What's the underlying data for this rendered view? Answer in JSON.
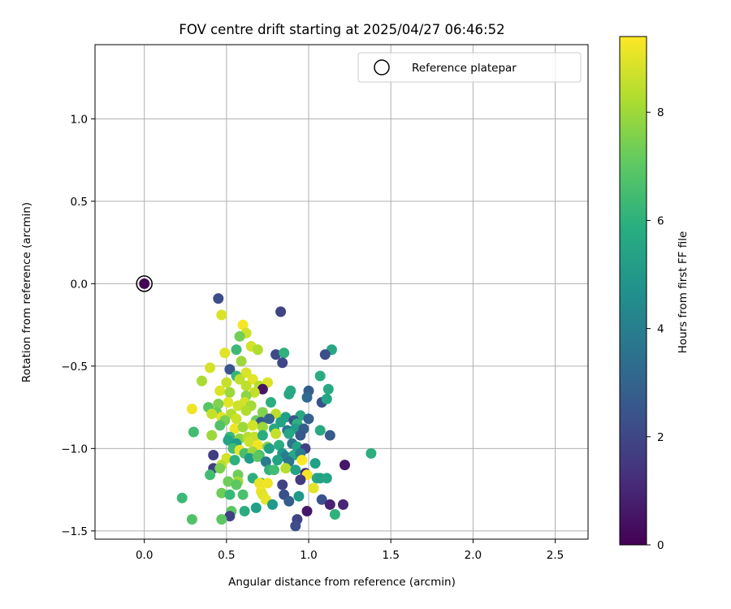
{
  "chart_data": {
    "type": "scatter",
    "title": "FOV centre drift starting at 2025/04/27 06:46:52",
    "xlabel": "Angular distance from reference (arcmin)",
    "ylabel": "Rotation from reference (arcmin)",
    "xlim": [
      -0.3,
      2.7
    ],
    "ylim": [
      -1.55,
      1.45
    ],
    "xticks": [
      0.0,
      0.5,
      1.0,
      1.5,
      2.0,
      2.5
    ],
    "xtick_labels": [
      "0.0",
      "0.5",
      "1.0",
      "1.5",
      "2.0",
      "2.5"
    ],
    "yticks": [
      1.0,
      0.5,
      0.0,
      -0.5,
      -1.0,
      -1.5
    ],
    "ytick_labels": [
      "1.0",
      "0.5",
      "0.0",
      "−0.5",
      "−1.0",
      "−1.5"
    ],
    "grid": true,
    "legend": {
      "placement": "top-right",
      "entries": [
        "Reference platepar"
      ]
    },
    "colorbar": {
      "label": "Hours from first FF file",
      "range": [
        0,
        9.4
      ],
      "ticks": [
        0,
        2,
        4,
        6,
        8
      ],
      "tick_labels": [
        "0",
        "2",
        "4",
        "6",
        "8"
      ],
      "colormap": "viridis"
    },
    "reference": {
      "x": 0.0,
      "y": 0.0,
      "hours": 0.0
    },
    "series": [
      {
        "points": [
          [
            0.45,
            -0.09,
            2.2
          ],
          [
            0.83,
            -0.17,
            1.9
          ],
          [
            0.47,
            -0.19,
            8.9
          ],
          [
            0.6,
            -0.25,
            9.3
          ],
          [
            0.62,
            -0.3,
            8.7
          ],
          [
            0.58,
            -0.32,
            7.4
          ],
          [
            0.56,
            -0.4,
            6.4
          ],
          [
            0.65,
            -0.38,
            8.8
          ],
          [
            0.69,
            -0.4,
            8.3
          ],
          [
            0.49,
            -0.42,
            9.0
          ],
          [
            0.8,
            -0.43,
            2.1
          ],
          [
            0.85,
            -0.42,
            6.0
          ],
          [
            1.14,
            -0.4,
            5.6
          ],
          [
            1.1,
            -0.43,
            2.3
          ],
          [
            0.59,
            -0.47,
            8.0
          ],
          [
            0.84,
            -0.48,
            2.0
          ],
          [
            0.4,
            -0.51,
            8.8
          ],
          [
            0.52,
            -0.52,
            2.5
          ],
          [
            0.56,
            -0.56,
            6.2
          ],
          [
            0.62,
            -0.54,
            8.9
          ],
          [
            0.58,
            -0.58,
            8.5
          ],
          [
            0.35,
            -0.59,
            8.2
          ],
          [
            0.5,
            -0.6,
            8.6
          ],
          [
            0.66,
            -0.58,
            9.0
          ],
          [
            0.7,
            -0.62,
            8.4
          ],
          [
            0.75,
            -0.6,
            8.9
          ],
          [
            0.62,
            -0.62,
            8.5
          ],
          [
            1.07,
            -0.56,
            5.8
          ],
          [
            1.0,
            -0.65,
            2.8
          ],
          [
            0.89,
            -0.65,
            5.7
          ],
          [
            0.88,
            -0.67,
            5.6
          ],
          [
            0.99,
            -0.69,
            3.2
          ],
          [
            0.72,
            -0.64,
            0.5
          ],
          [
            0.46,
            -0.65,
            8.9
          ],
          [
            0.52,
            -0.66,
            8.0
          ],
          [
            0.67,
            -0.66,
            8.6
          ],
          [
            0.62,
            -0.68,
            7.8
          ],
          [
            1.12,
            -0.64,
            5.7
          ],
          [
            1.08,
            -0.72,
            2.4
          ],
          [
            1.11,
            -0.7,
            5.5
          ],
          [
            0.51,
            -0.72,
            9.0
          ],
          [
            0.61,
            -0.72,
            8.8
          ],
          [
            0.77,
            -0.72,
            5.9
          ],
          [
            0.39,
            -0.75,
            6.9
          ],
          [
            0.45,
            -0.73,
            7.6
          ],
          [
            0.57,
            -0.74,
            8.7
          ],
          [
            0.65,
            -0.74,
            8.1
          ],
          [
            0.29,
            -0.76,
            9.2
          ],
          [
            0.44,
            -0.78,
            7.2
          ],
          [
            0.53,
            -0.79,
            8.4
          ],
          [
            0.62,
            -0.77,
            8.3
          ],
          [
            0.72,
            -0.78,
            7.6
          ],
          [
            0.8,
            -0.79,
            8.5
          ],
          [
            0.86,
            -0.81,
            5.3
          ],
          [
            0.95,
            -0.8,
            5.6
          ],
          [
            0.41,
            -0.79,
            8.6
          ],
          [
            0.47,
            -0.81,
            9.0
          ],
          [
            0.49,
            -0.83,
            7.5
          ],
          [
            0.56,
            -0.82,
            8.7
          ],
          [
            0.68,
            -0.83,
            7.3
          ],
          [
            0.71,
            -0.84,
            2.7
          ],
          [
            0.76,
            -0.82,
            3.0
          ],
          [
            0.83,
            -0.84,
            5.4
          ],
          [
            0.91,
            -0.83,
            2.6
          ],
          [
            0.93,
            -0.85,
            6.0
          ],
          [
            1.0,
            -0.82,
            2.9
          ],
          [
            0.46,
            -0.86,
            6.8
          ],
          [
            0.55,
            -0.88,
            9.2
          ],
          [
            0.6,
            -0.87,
            8.0
          ],
          [
            0.66,
            -0.86,
            8.8
          ],
          [
            0.72,
            -0.87,
            8.0
          ],
          [
            0.79,
            -0.88,
            5.6
          ],
          [
            0.87,
            -0.89,
            3.8
          ],
          [
            0.92,
            -0.88,
            5.2
          ],
          [
            0.97,
            -0.88,
            2.8
          ],
          [
            1.07,
            -0.89,
            5.7
          ],
          [
            0.3,
            -0.9,
            6.5
          ],
          [
            0.41,
            -0.92,
            8.0
          ],
          [
            0.52,
            -0.93,
            6.3
          ],
          [
            0.58,
            -0.94,
            7.8
          ],
          [
            0.63,
            -0.93,
            8.4
          ],
          [
            0.67,
            -0.93,
            8.6
          ],
          [
            0.72,
            -0.92,
            5.8
          ],
          [
            0.8,
            -0.91,
            8.6
          ],
          [
            0.88,
            -0.91,
            5.6
          ],
          [
            0.95,
            -0.92,
            2.6
          ],
          [
            1.13,
            -0.92,
            2.7
          ],
          [
            0.51,
            -0.95,
            5.5
          ],
          [
            0.56,
            -0.97,
            5.2
          ],
          [
            0.64,
            -0.96,
            8.7
          ],
          [
            0.69,
            -0.98,
            9.2
          ],
          [
            0.75,
            -0.99,
            7.6
          ],
          [
            0.82,
            -0.98,
            5.8
          ],
          [
            0.9,
            -0.97,
            3.7
          ],
          [
            0.93,
            -0.99,
            5.4
          ],
          [
            0.98,
            -1.0,
            1.8
          ],
          [
            0.54,
            -1.0,
            6.5
          ],
          [
            0.58,
            -1.01,
            9.1
          ],
          [
            0.61,
            -1.03,
            6.6
          ],
          [
            0.66,
            -1.02,
            8.0
          ],
          [
            0.7,
            -1.04,
            6.6
          ],
          [
            0.76,
            -1.0,
            5.3
          ],
          [
            0.84,
            -1.03,
            5.0
          ],
          [
            0.86,
            -1.05,
            4.0
          ],
          [
            0.91,
            -1.04,
            5.6
          ],
          [
            0.95,
            -1.03,
            3.9
          ],
          [
            0.42,
            -1.04,
            1.7
          ],
          [
            0.5,
            -1.06,
            8.8
          ],
          [
            0.55,
            -1.07,
            6.0
          ],
          [
            0.64,
            -1.06,
            5.2
          ],
          [
            0.69,
            -1.05,
            7.0
          ],
          [
            0.74,
            -1.08,
            3.9
          ],
          [
            0.81,
            -1.07,
            5.4
          ],
          [
            0.88,
            -1.08,
            3.7
          ],
          [
            0.96,
            -1.07,
            9.4
          ],
          [
            1.04,
            -1.09,
            5.3
          ],
          [
            1.22,
            -1.1,
            0.6
          ],
          [
            1.38,
            -1.03,
            5.9
          ],
          [
            0.42,
            -1.12,
            1.8
          ],
          [
            0.47,
            -1.1,
            8.5
          ],
          [
            0.46,
            -1.12,
            7.5
          ],
          [
            0.76,
            -1.13,
            6.1
          ],
          [
            0.79,
            -1.13,
            6.5
          ],
          [
            0.86,
            -1.12,
            8.4
          ],
          [
            0.92,
            -1.13,
            5.4
          ],
          [
            0.98,
            -1.15,
            1.2
          ],
          [
            0.99,
            -1.16,
            9.3
          ],
          [
            0.4,
            -1.16,
            6.5
          ],
          [
            0.57,
            -1.16,
            7.3
          ],
          [
            0.66,
            -1.18,
            5.9
          ],
          [
            0.71,
            -1.21,
            5.5
          ],
          [
            1.05,
            -1.18,
            5.7
          ],
          [
            1.07,
            -1.18,
            5.4
          ],
          [
            1.11,
            -1.18,
            5.5
          ],
          [
            0.51,
            -1.2,
            7.3
          ],
          [
            0.57,
            -1.2,
            8.1
          ],
          [
            0.7,
            -1.21,
            9.1
          ],
          [
            0.75,
            -1.21,
            9.2
          ],
          [
            0.84,
            -1.22,
            1.9
          ],
          [
            0.95,
            -1.19,
            1.6
          ],
          [
            1.03,
            -1.24,
            9.0
          ],
          [
            0.56,
            -1.22,
            7.0
          ],
          [
            0.71,
            -1.26,
            9.2
          ],
          [
            0.47,
            -1.27,
            7.3
          ],
          [
            0.52,
            -1.28,
            6.3
          ],
          [
            0.6,
            -1.28,
            6.7
          ],
          [
            0.72,
            -1.28,
            9.0
          ],
          [
            0.85,
            -1.28,
            2.3
          ],
          [
            0.94,
            -1.29,
            5.0
          ],
          [
            0.23,
            -1.3,
            6.4
          ],
          [
            0.74,
            -1.31,
            9.1
          ],
          [
            1.08,
            -1.31,
            2.4
          ],
          [
            0.88,
            -1.32,
            2.8
          ],
          [
            0.78,
            -1.34,
            5.0
          ],
          [
            1.13,
            -1.34,
            0.9
          ],
          [
            1.21,
            -1.34,
            1.0
          ],
          [
            0.53,
            -1.38,
            7.0
          ],
          [
            0.61,
            -1.38,
            5.8
          ],
          [
            0.68,
            -1.36,
            5.3
          ],
          [
            0.99,
            -1.38,
            0.6
          ],
          [
            1.16,
            -1.4,
            6.0
          ],
          [
            0.52,
            -1.41,
            1.8
          ],
          [
            0.29,
            -1.43,
            6.8
          ],
          [
            0.47,
            -1.43,
            7.0
          ],
          [
            0.93,
            -1.43,
            1.9
          ],
          [
            0.92,
            -1.47,
            2.2
          ]
        ]
      }
    ]
  }
}
